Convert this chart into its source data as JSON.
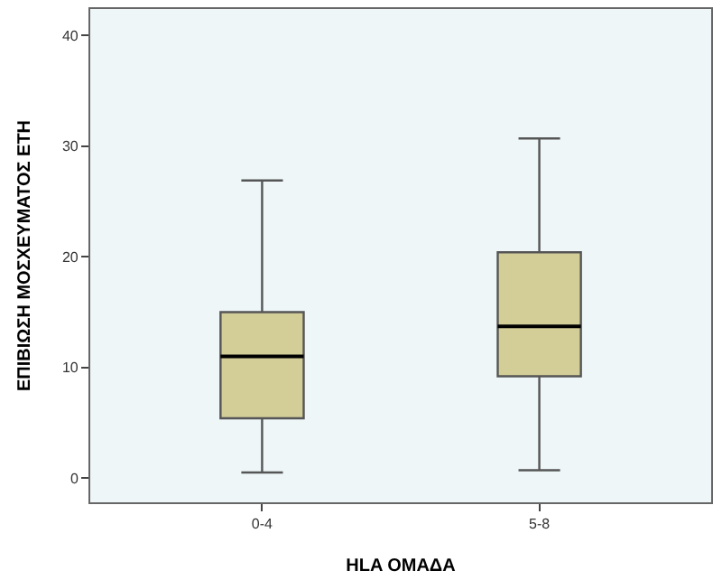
{
  "chart_data": {
    "type": "box",
    "xlabel": "HLA ΟΜΑΔΑ",
    "ylabel": "ΕΠΙΒΙΩΣΗ ΜΟΣΧΕΥΜΑΤΟΣ ΕΤΗ",
    "categories": [
      "0-4",
      "5-8"
    ],
    "boxes": [
      {
        "low": 0.5,
        "q1": 5.4,
        "median": 11.0,
        "q3": 15.0,
        "high": 26.9
      },
      {
        "low": 0.7,
        "q1": 9.2,
        "median": 13.7,
        "q3": 20.4,
        "high": 30.7
      }
    ],
    "color": "#d3cd98",
    "ylim": [
      -2.2,
      42.4
    ],
    "yticks": [
      0,
      10,
      20,
      30,
      40
    ],
    "grid": false,
    "legend": false
  }
}
